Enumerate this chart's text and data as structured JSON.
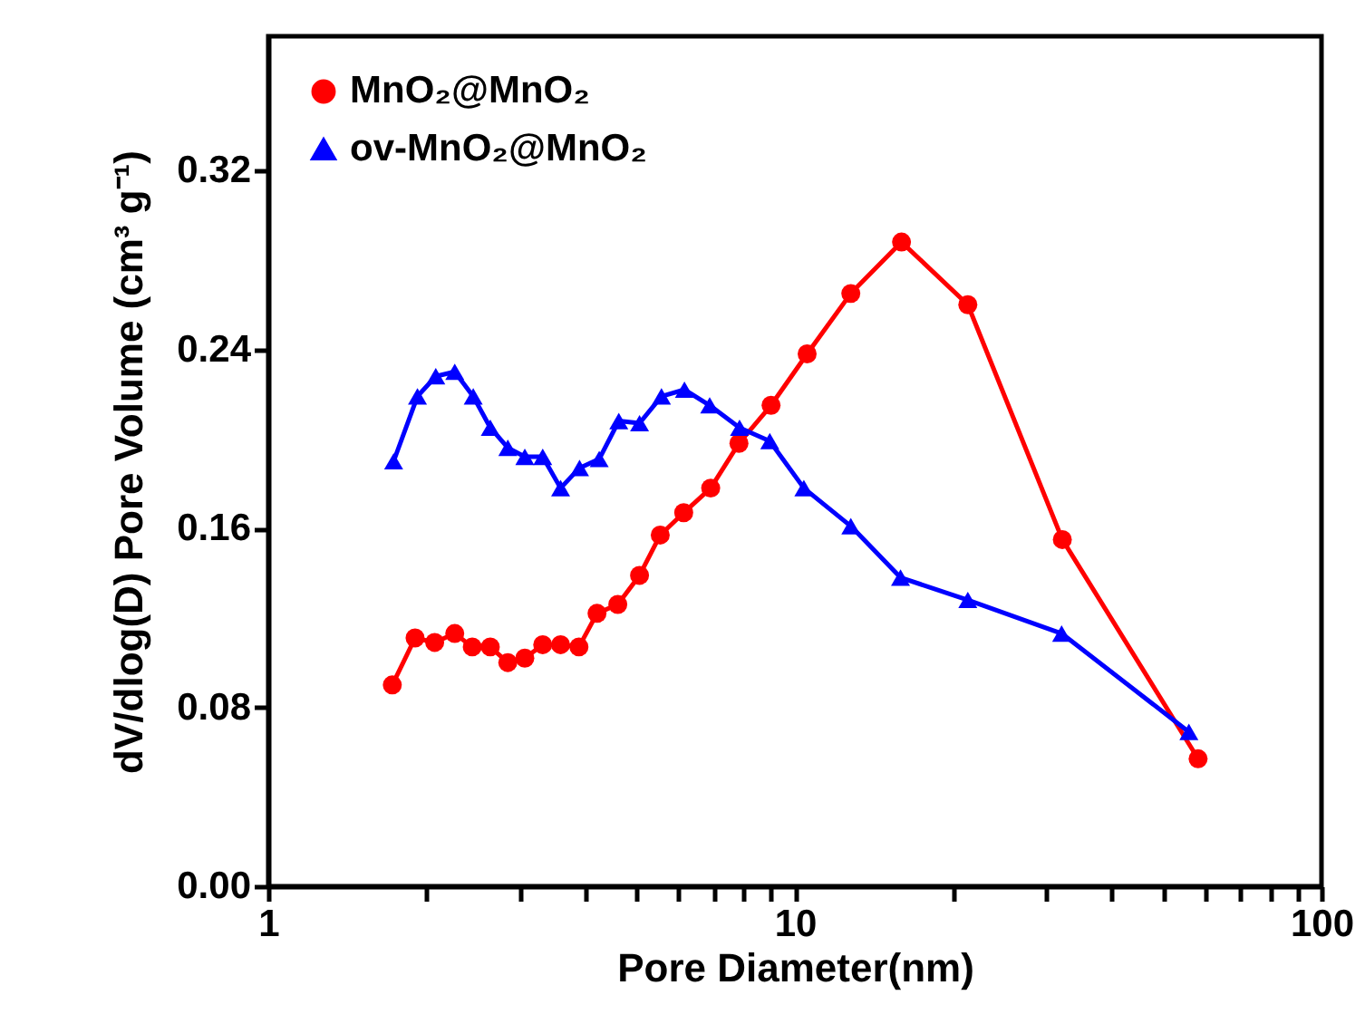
{
  "chart_data": {
    "type": "line",
    "xlabel": "Pore Diameter(nm)",
    "ylabel": "dV/dlog(D) Pore Volume (cm³ g⁻¹)",
    "log": "x",
    "grid": false,
    "legend": "top left",
    "line_style": "solid",
    "xlim": [
      1,
      100
    ],
    "xticks": [
      1,
      {
        "value": 2,
        "label": null
      },
      {
        "value": 3,
        "label": null
      },
      {
        "value": 4,
        "label": null
      },
      {
        "value": 5,
        "label": null
      },
      {
        "value": 6,
        "label": null
      },
      {
        "value": 7,
        "label": null
      },
      {
        "value": 8,
        "label": null
      },
      {
        "value": 9,
        "label": null
      },
      10,
      {
        "value": 20,
        "label": null
      },
      {
        "value": 30,
        "label": null
      },
      {
        "value": 40,
        "label": null
      },
      {
        "value": 50,
        "label": null
      },
      {
        "value": 60,
        "label": null
      },
      {
        "value": 70,
        "label": null
      },
      {
        "value": 80,
        "label": null
      },
      {
        "value": 90,
        "label": null
      },
      100
    ],
    "ylim": [
      0,
      0.38
    ],
    "yticks": [
      {
        "value": 0,
        "label": "0.00"
      },
      {
        "value": 0.08,
        "label": "0.08"
      },
      {
        "value": 0.16,
        "label": "0.16"
      },
      {
        "value": 0.24,
        "label": "0.24"
      },
      {
        "value": 0.32,
        "label": "0.32"
      }
    ],
    "series": [
      {
        "name": "MnO₂@MnO₂",
        "color": "#ff0000",
        "marker": "circle",
        "x": [
          1.72,
          1.9,
          2.07,
          2.26,
          2.44,
          2.64,
          2.85,
          3.07,
          3.32,
          3.59,
          3.89,
          4.21,
          4.61,
          5.07,
          5.55,
          6.15,
          6.92,
          7.83,
          9.01,
          10.55,
          12.77,
          15.94,
          21.3,
          32.2,
          58.3
        ],
        "values": [
          0.09,
          0.111,
          0.109,
          0.113,
          0.107,
          0.107,
          0.1,
          0.102,
          0.108,
          0.108,
          0.107,
          0.122,
          0.126,
          0.139,
          0.157,
          0.167,
          0.178,
          0.198,
          0.215,
          0.238,
          0.265,
          0.288,
          0.26,
          0.155,
          0.057
        ]
      },
      {
        "name": "ov-MnO₂@MnO₂",
        "color": "#0000ff",
        "marker": "triangle",
        "x": [
          1.73,
          1.92,
          2.08,
          2.26,
          2.45,
          2.64,
          2.85,
          3.07,
          3.32,
          3.59,
          3.9,
          4.25,
          4.63,
          5.07,
          5.58,
          6.17,
          6.89,
          7.85,
          8.96,
          10.4,
          12.77,
          15.87,
          21.3,
          32.1,
          56.0
        ],
        "values": [
          0.19,
          0.219,
          0.228,
          0.23,
          0.219,
          0.205,
          0.196,
          0.192,
          0.192,
          0.178,
          0.187,
          0.191,
          0.208,
          0.207,
          0.219,
          0.222,
          0.215,
          0.205,
          0.199,
          0.178,
          0.161,
          0.138,
          0.128,
          0.113,
          0.069
        ]
      }
    ]
  }
}
